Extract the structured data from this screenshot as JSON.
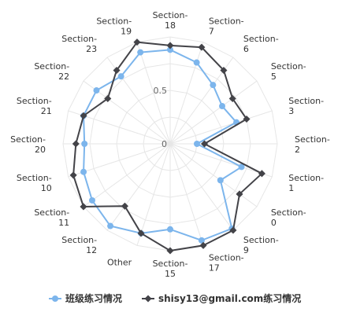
{
  "chart_data": {
    "type": "radar",
    "categories": [
      "Section-7",
      "Section-6",
      "Section-5",
      "Section-3",
      "Section-2",
      "Section-1",
      "Section-0",
      "Section-9",
      "Section-17",
      "Section-15",
      "Other",
      "Section-12",
      "Section-11",
      "Section-10",
      "Section-20",
      "Section-21",
      "Section-22",
      "Section-23",
      "Section-19",
      "Section-18"
    ],
    "radial_ticks": [
      {
        "value": 0,
        "label": "0"
      },
      {
        "value": 0.5,
        "label": "0.5"
      }
    ],
    "rmax": 1,
    "grid": true,
    "series": [
      {
        "name": "班级练习情况",
        "color": "#7cb5ec",
        "values": [
          0.8,
          0.68,
          0.6,
          0.65,
          0.25,
          0.7,
          0.58,
          0.98,
          0.95,
          0.8,
          0.88,
          0.95,
          0.9,
          0.85,
          0.8,
          0.85,
          0.85,
          0.78,
          0.9,
          0.88
        ]
      },
      {
        "name": "shisy13@gmail.com练习情况",
        "color": "#434348",
        "values": [
          0.95,
          0.85,
          0.72,
          0.75,
          0.32,
          0.9,
          0.8,
          1.0,
          1.0,
          1.0,
          0.88,
          0.72,
          1.0,
          0.95,
          0.88,
          0.85,
          0.72,
          0.85,
          1.0,
          0.92
        ]
      }
    ],
    "legend_position": "bottom"
  }
}
